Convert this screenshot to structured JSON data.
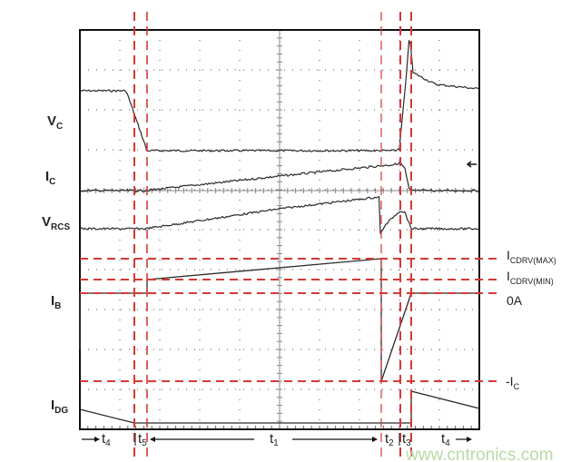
{
  "signals": {
    "vc": {
      "main": "V",
      "sub": "C"
    },
    "ic": {
      "main": "I",
      "sub": "C"
    },
    "vrcs": {
      "main": "V",
      "sub": "RCS"
    },
    "ib": {
      "main": "I",
      "sub": "B"
    },
    "idg": {
      "main": "I",
      "sub": "DG"
    }
  },
  "levels": {
    "icdrv_max": {
      "main": "I",
      "sub": "CDRV(MAX)"
    },
    "icdrv_min": {
      "main": "I",
      "sub": "CDRV(MIN)"
    },
    "zero": "0A",
    "neg_ic": {
      "main": "-I",
      "sub": "C"
    }
  },
  "intervals": {
    "t4_left": {
      "main": "t",
      "sub": "4"
    },
    "t5": {
      "main": "t",
      "sub": "5"
    },
    "t1": {
      "main": "t",
      "sub": "1"
    },
    "t2": {
      "main": "t",
      "sub": "2"
    },
    "t3": {
      "main": "t",
      "sub": "3"
    },
    "t4_right": {
      "main": "t",
      "sub": "4"
    }
  },
  "watermark": "www.cntronics.com",
  "colors": {
    "marker": "#d23a34",
    "trace": "#2a2a2a",
    "grid": "#555555",
    "watermark": "#b9d9a6"
  }
}
